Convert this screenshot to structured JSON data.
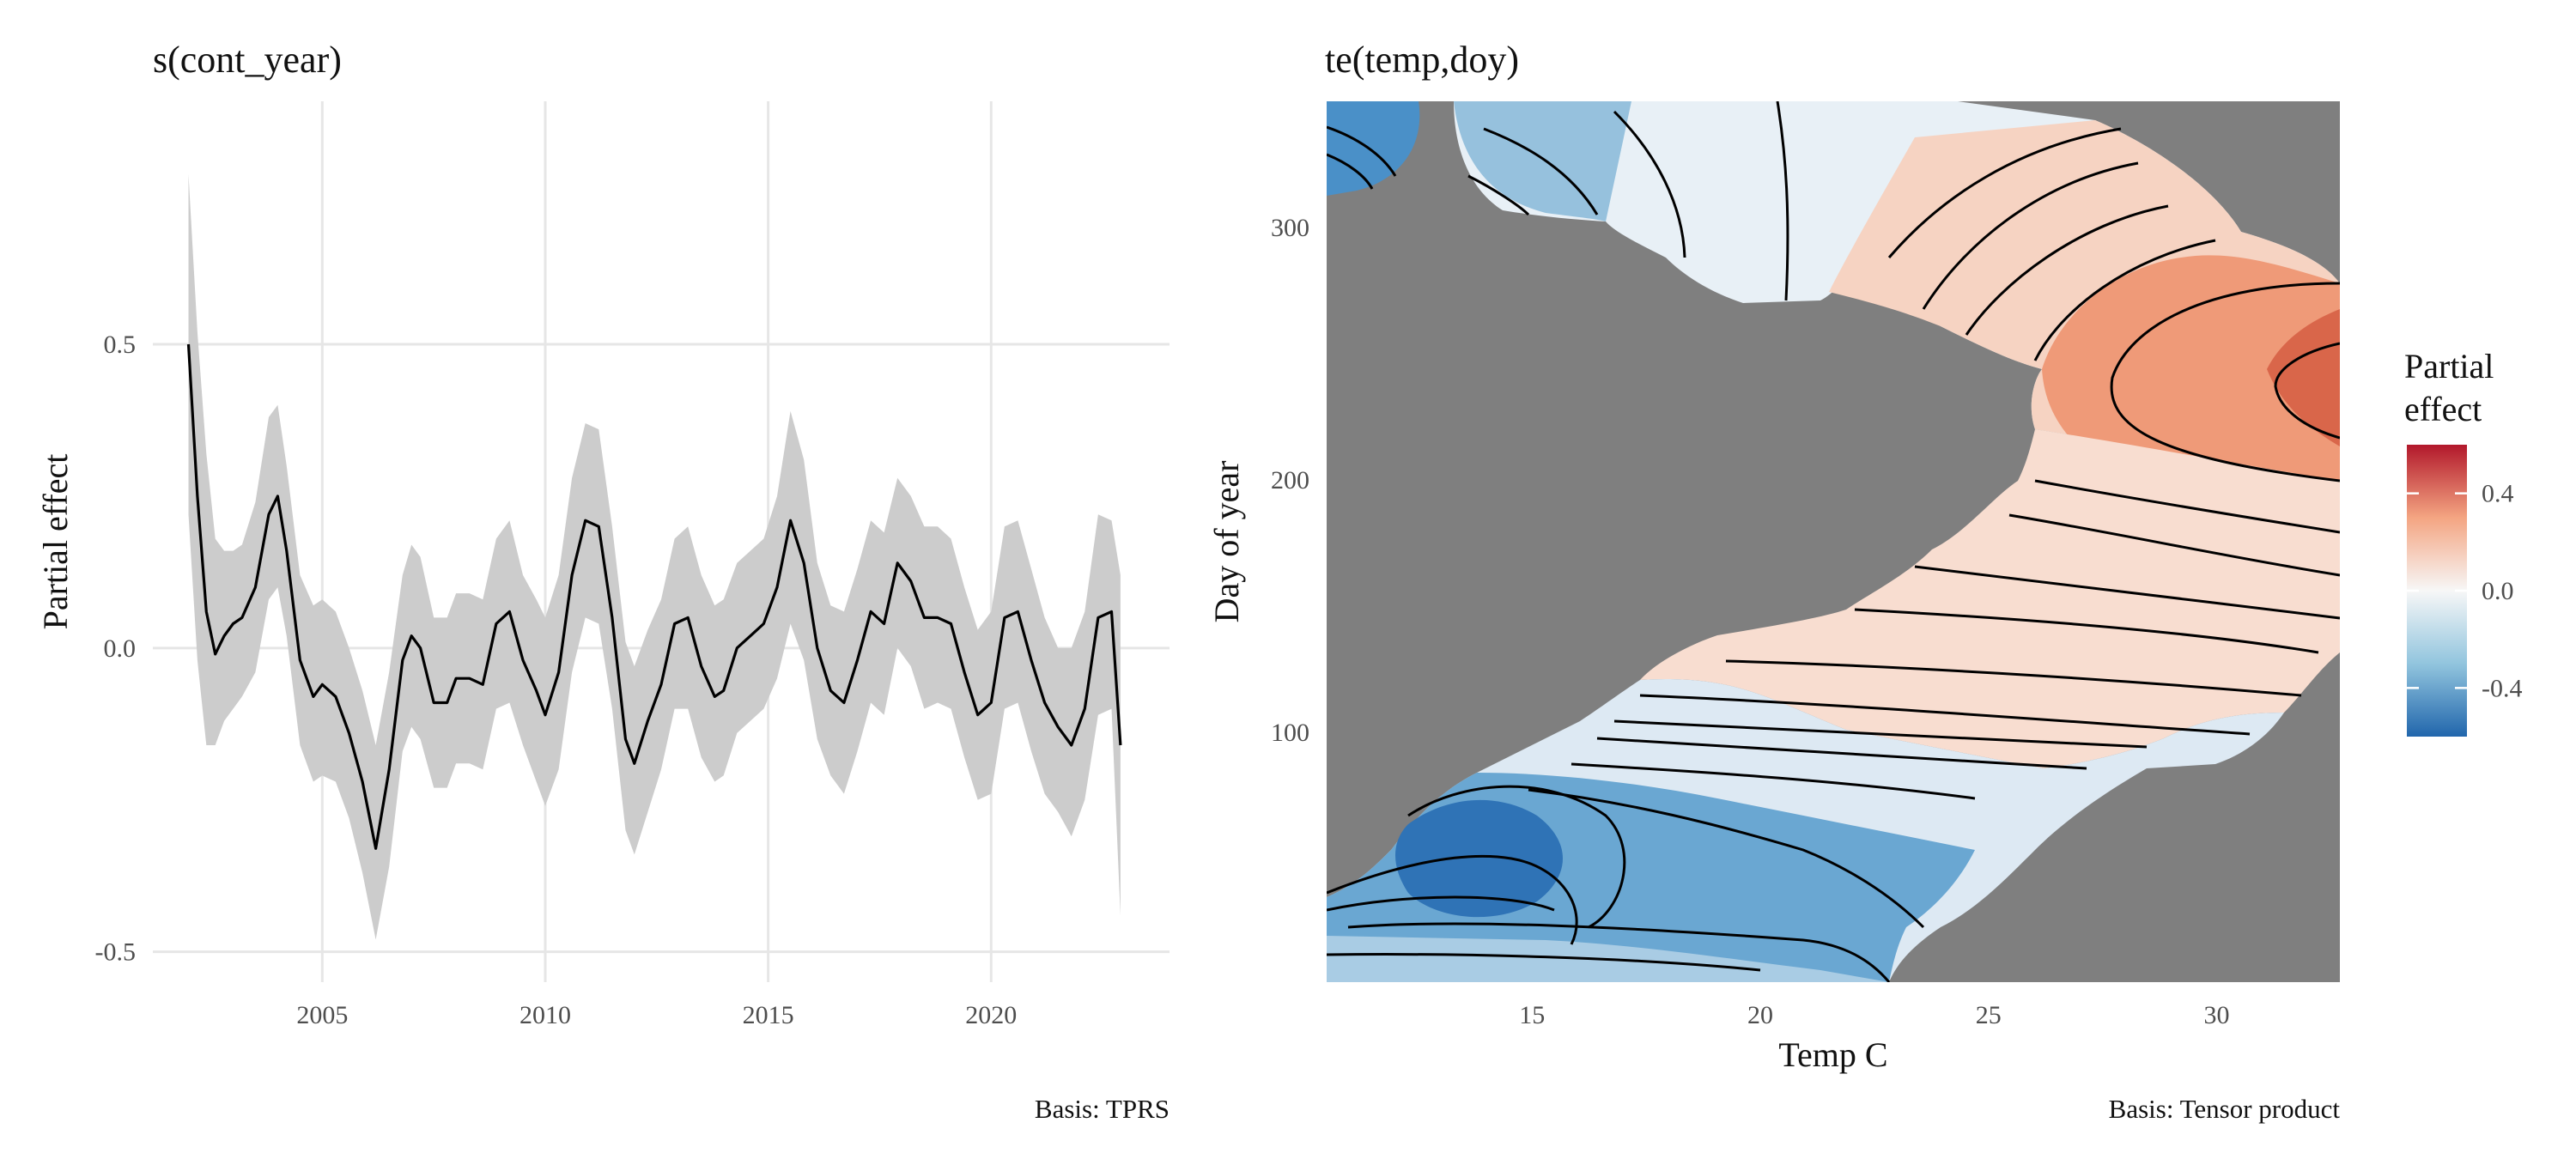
{
  "chart_data": [
    {
      "type": "line",
      "title": "s(cont_year)",
      "xlabel": "",
      "ylabel": "Partial effect",
      "caption": "Basis: TPRS",
      "xlim": [
        2001.2,
        2024.0
      ],
      "ylim": [
        -0.55,
        0.9
      ],
      "xticks": [
        "2005",
        "2010",
        "2015",
        "2020"
      ],
      "yticks": [
        "-0.5",
        "0.0",
        "0.5"
      ],
      "grid": true,
      "confidence_band": true,
      "x": [
        2002.0,
        2002.2,
        2002.4,
        2002.6,
        2002.8,
        2003.0,
        2003.2,
        2003.5,
        2003.8,
        2004.0,
        2004.2,
        2004.5,
        2004.8,
        2005.0,
        2005.3,
        2005.6,
        2005.9,
        2006.2,
        2006.5,
        2006.8,
        2007.0,
        2007.2,
        2007.5,
        2007.8,
        2008.0,
        2008.3,
        2008.6,
        2008.9,
        2009.2,
        2009.5,
        2009.8,
        2010.0,
        2010.3,
        2010.6,
        2010.9,
        2011.2,
        2011.5,
        2011.8,
        2012.0,
        2012.3,
        2012.6,
        2012.9,
        2013.2,
        2013.5,
        2013.8,
        2014.0,
        2014.3,
        2014.6,
        2014.9,
        2015.2,
        2015.5,
        2015.8,
        2016.1,
        2016.4,
        2016.7,
        2017.0,
        2017.3,
        2017.6,
        2017.9,
        2018.2,
        2018.5,
        2018.8,
        2019.1,
        2019.4,
        2019.7,
        2020.0,
        2020.3,
        2020.6,
        2020.9,
        2021.2,
        2021.5,
        2021.8,
        2022.1,
        2022.4,
        2022.7,
        2022.9
      ],
      "y": [
        0.5,
        0.25,
        0.06,
        -0.01,
        0.02,
        0.04,
        0.05,
        0.1,
        0.22,
        0.25,
        0.16,
        -0.02,
        -0.08,
        -0.06,
        -0.08,
        -0.14,
        -0.22,
        -0.33,
        -0.2,
        -0.02,
        0.02,
        0.0,
        -0.09,
        -0.09,
        -0.05,
        -0.05,
        -0.06,
        0.04,
        0.06,
        -0.02,
        -0.07,
        -0.11,
        -0.04,
        0.12,
        0.21,
        0.2,
        0.05,
        -0.15,
        -0.19,
        -0.12,
        -0.06,
        0.04,
        0.05,
        -0.03,
        -0.08,
        -0.07,
        0.0,
        0.02,
        0.04,
        0.1,
        0.21,
        0.14,
        0.0,
        -0.07,
        -0.09,
        -0.02,
        0.06,
        0.04,
        0.14,
        0.11,
        0.05,
        0.05,
        0.04,
        -0.04,
        -0.11,
        -0.09,
        0.05,
        0.06,
        -0.02,
        -0.09,
        -0.13,
        -0.16,
        -0.1,
        0.05,
        0.06,
        -0.16
      ],
      "upper": [
        0.78,
        0.52,
        0.32,
        0.18,
        0.16,
        0.16,
        0.17,
        0.24,
        0.38,
        0.4,
        0.3,
        0.12,
        0.07,
        0.08,
        0.06,
        0.0,
        -0.07,
        -0.16,
        -0.04,
        0.12,
        0.17,
        0.15,
        0.05,
        0.05,
        0.09,
        0.09,
        0.08,
        0.18,
        0.21,
        0.12,
        0.08,
        0.05,
        0.12,
        0.28,
        0.37,
        0.36,
        0.2,
        0.01,
        -0.03,
        0.03,
        0.08,
        0.18,
        0.2,
        0.12,
        0.07,
        0.08,
        0.14,
        0.16,
        0.18,
        0.25,
        0.39,
        0.31,
        0.14,
        0.07,
        0.06,
        0.13,
        0.21,
        0.19,
        0.28,
        0.25,
        0.2,
        0.2,
        0.18,
        0.1,
        0.03,
        0.06,
        0.2,
        0.21,
        0.13,
        0.05,
        0.0,
        0.0,
        0.06,
        0.22,
        0.21,
        0.12
      ],
      "lower": [
        0.22,
        -0.02,
        -0.16,
        -0.16,
        -0.12,
        -0.1,
        -0.08,
        -0.04,
        0.08,
        0.1,
        0.02,
        -0.16,
        -0.22,
        -0.21,
        -0.22,
        -0.28,
        -0.37,
        -0.48,
        -0.36,
        -0.17,
        -0.13,
        -0.15,
        -0.23,
        -0.23,
        -0.19,
        -0.19,
        -0.2,
        -0.1,
        -0.09,
        -0.16,
        -0.22,
        -0.26,
        -0.2,
        -0.04,
        0.05,
        0.04,
        -0.1,
        -0.3,
        -0.34,
        -0.27,
        -0.2,
        -0.1,
        -0.1,
        -0.18,
        -0.22,
        -0.21,
        -0.14,
        -0.12,
        -0.1,
        -0.05,
        0.04,
        -0.02,
        -0.15,
        -0.21,
        -0.24,
        -0.17,
        -0.09,
        -0.11,
        0.0,
        -0.03,
        -0.1,
        -0.09,
        -0.1,
        -0.18,
        -0.25,
        -0.24,
        -0.1,
        -0.09,
        -0.17,
        -0.24,
        -0.27,
        -0.31,
        -0.25,
        -0.11,
        -0.1,
        -0.44
      ],
      "colors": {
        "line": "#000000",
        "band": "#cccccc",
        "grid": "#e6e6e6"
      }
    },
    {
      "type": "heatmap",
      "title": "te(temp,doy)",
      "xlabel": "Temp C",
      "ylabel": "Day of year",
      "caption": "Basis: Tensor product",
      "xlim": [
        10.5,
        32.7
      ],
      "ylim": [
        1,
        350
      ],
      "xticks": [
        "15",
        "20",
        "25",
        "30"
      ],
      "yticks": [
        "100",
        "200",
        "300"
      ],
      "contours": true,
      "missing_color": "#7f7f7f",
      "legend": {
        "title_line1": "Partial",
        "title_line2": "effect",
        "ticks": [
          "0.4",
          "0.0",
          "-0.4"
        ],
        "range": [
          -0.6,
          0.6
        ],
        "placement": "right",
        "colors": [
          "#2166ac",
          "#92c5de",
          "#f7f7f7",
          "#f4a582",
          "#b2182b"
        ]
      }
    }
  ]
}
